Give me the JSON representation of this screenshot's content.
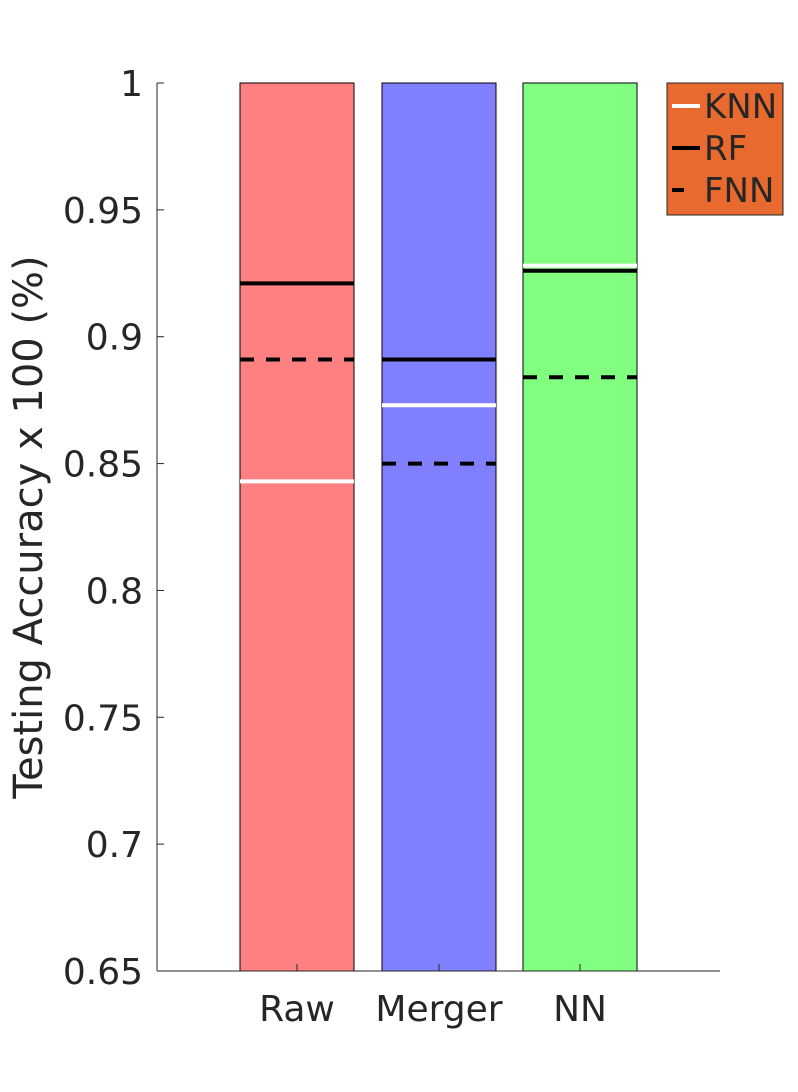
{
  "chart_data": {
    "type": "bar",
    "categories": [
      "Raw",
      "Merger",
      "NN"
    ],
    "bar_values": [
      1,
      1,
      1
    ],
    "bar_colors": [
      "#ff8080",
      "#8080ff",
      "#80ff80"
    ],
    "ylabel": "Testing Accuracy x 100 (%)",
    "xlabel": "",
    "ylim": [
      0.65,
      1
    ],
    "yticks": [
      0.65,
      0.7,
      0.75,
      0.8,
      0.85,
      0.9,
      0.95,
      1
    ],
    "ytick_labels": [
      "0.65",
      "0.7",
      "0.75",
      "0.8",
      "0.85",
      "0.9",
      "0.95",
      "1"
    ],
    "grid": false,
    "series": [
      {
        "name": "KNN",
        "style": "solid",
        "color": "#ffffff",
        "values": [
          0.843,
          0.873,
          0.928
        ]
      },
      {
        "name": "RF",
        "style": "solid",
        "color": "#000000",
        "values": [
          0.921,
          0.891,
          0.926
        ]
      },
      {
        "name": "FNN",
        "style": "dashed",
        "color": "#000000",
        "values": [
          0.891,
          0.85,
          0.884
        ]
      }
    ],
    "legend": {
      "position": "top-right",
      "background": "#e86a2e",
      "entries": [
        "KNN",
        "RF",
        "FNN"
      ]
    }
  }
}
